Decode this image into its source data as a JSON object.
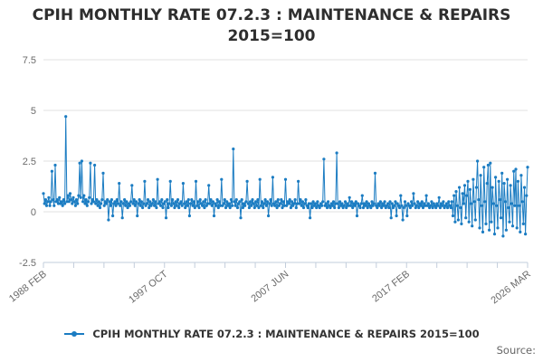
{
  "header": {
    "title": "CPIH MONTHLY RATE 07.2.3 : MAINTENANCE & REPAIRS 2015=100"
  },
  "legend": {
    "label": "CPIH MONTHLY RATE 07.2.3 : MAINTENANCE & REPAIRS 2015=100",
    "marker_color": "#1b7cc2"
  },
  "footer": {
    "source_label": "Source:"
  },
  "chart_data": {
    "type": "line",
    "title": "CPIH MONTHLY RATE 07.2.3 : MAINTENANCE & REPAIRS 2015=100",
    "xlabel": "",
    "ylabel": "",
    "x_start": "1988 FEB",
    "x_end": "2026 MAR",
    "frequency": "monthly",
    "x_tick_labels": [
      "1988 FEB",
      "1997 OCT",
      "2007 JUN",
      "2017 FEB",
      "2026 MAR"
    ],
    "x_total_ticks": 17,
    "y_ticks": [
      7.5,
      5,
      2.5,
      0,
      -2.5
    ],
    "ylim": [
      -2.5,
      7.5
    ],
    "grid": "horizontal",
    "legend_position": "bottom",
    "colors": {
      "line": "#1b7cc2",
      "grid": "#e1e1e1",
      "axis": "#c2cddb",
      "tick_label": "#6b6b6b"
    },
    "series": [
      {
        "name": "CPIH MONTHLY RATE 07.2.3 : MAINTENANCE & REPAIRS 2015=100",
        "values": [
          0.9,
          0.4,
          0.6,
          0.3,
          0.5,
          0.7,
          0.3,
          0.5,
          2.0,
          0.6,
          0.3,
          2.3,
          0.5,
          0.6,
          0.4,
          0.7,
          0.4,
          0.5,
          0.3,
          0.6,
          0.4,
          4.7,
          0.5,
          0.8,
          0.5,
          0.9,
          0.6,
          0.4,
          0.7,
          0.5,
          0.3,
          0.6,
          0.4,
          0.8,
          2.4,
          0.7,
          2.5,
          0.5,
          0.8,
          0.4,
          0.6,
          0.3,
          0.5,
          0.7,
          2.4,
          0.4,
          0.6,
          0.5,
          2.3,
          0.4,
          0.6,
          0.3,
          0.5,
          0.2,
          0.4,
          0.6,
          1.9,
          0.3,
          0.5,
          0.4,
          0.6,
          -0.4,
          0.5,
          0.3,
          0.6,
          -0.2,
          0.4,
          0.5,
          0.3,
          0.6,
          0.4,
          1.4,
          0.3,
          0.5,
          -0.3,
          0.4,
          0.6,
          0.3,
          0.5,
          0.2,
          0.4,
          0.3,
          0.5,
          1.3,
          0.4,
          0.6,
          0.3,
          0.5,
          -0.2,
          0.4,
          0.6,
          0.3,
          0.5,
          0.2,
          0.4,
          1.5,
          0.3,
          0.4,
          0.6,
          0.2,
          0.5,
          0.3,
          0.4,
          0.6,
          0.3,
          0.5,
          0.2,
          1.6,
          0.4,
          0.5,
          0.3,
          0.6,
          0.2,
          0.4,
          0.5,
          -0.3,
          0.6,
          0.2,
          0.4,
          1.5,
          0.3,
          0.6,
          0.4,
          0.2,
          0.5,
          0.3,
          0.6,
          0.2,
          0.4,
          0.5,
          0.3,
          1.4,
          0.4,
          0.2,
          0.5,
          0.3,
          0.6,
          -0.2,
          0.4,
          0.6,
          0.3,
          0.5,
          0.2,
          1.5,
          0.3,
          0.5,
          0.2,
          0.6,
          0.4,
          0.3,
          0.5,
          0.2,
          0.6,
          0.3,
          0.4,
          1.3,
          0.4,
          0.6,
          0.3,
          0.5,
          -0.2,
          0.4,
          0.3,
          0.6,
          0.2,
          0.5,
          0.3,
          1.6,
          0.3,
          0.4,
          0.6,
          0.2,
          0.5,
          0.3,
          0.4,
          0.2,
          0.6,
          0.3,
          3.1,
          0.5,
          0.3,
          0.6,
          0.2,
          0.4,
          0.5,
          -0.3,
          0.6,
          0.2,
          0.4,
          0.3,
          0.5,
          1.5,
          0.4,
          0.2,
          0.5,
          0.3,
          0.6,
          0.4,
          0.2,
          0.5,
          0.3,
          0.6,
          0.2,
          1.6,
          0.3,
          0.5,
          0.2,
          0.4,
          0.6,
          0.3,
          0.5,
          -0.2,
          0.4,
          0.6,
          0.3,
          1.7,
          0.4,
          0.3,
          0.5,
          0.2,
          0.6,
          0.3,
          0.4,
          0.6,
          0.2,
          0.5,
          0.3,
          1.6,
          0.3,
          0.5,
          0.4,
          0.6,
          0.2,
          0.5,
          0.3,
          0.4,
          0.6,
          0.2,
          0.4,
          1.5,
          0.4,
          0.6,
          0.3,
          0.5,
          0.2,
          0.4,
          0.6,
          0.3,
          0.2,
          0.4,
          -0.3,
          0.4,
          0.2,
          0.5,
          0.3,
          0.4,
          0.2,
          0.5,
          0.3,
          0.2,
          0.4,
          0.3,
          0.5,
          2.6,
          0.3,
          0.4,
          0.2,
          0.5,
          0.3,
          0.2,
          0.4,
          0.3,
          0.5,
          0.2,
          0.4,
          2.9,
          0.4,
          0.2,
          0.5,
          0.3,
          0.4,
          0.2,
          0.3,
          0.5,
          0.2,
          0.4,
          0.3,
          0.7,
          0.3,
          0.5,
          0.2,
          0.4,
          0.3,
          0.5,
          -0.2,
          0.4,
          0.3,
          0.2,
          0.4,
          0.8,
          0.2,
          0.4,
          0.3,
          0.5,
          0.2,
          0.4,
          0.3,
          0.2,
          0.5,
          0.3,
          0.4,
          1.9,
          0.3,
          0.2,
          0.4,
          0.3,
          0.5,
          0.2,
          0.4,
          0.3,
          0.5,
          0.2,
          0.3,
          0.4,
          0.2,
          0.5,
          -0.3,
          0.4,
          0.2,
          0.3,
          0.5,
          -0.2,
          0.4,
          0.3,
          0.2,
          0.8,
          0.3,
          -0.4,
          0.2,
          0.5,
          0.3,
          -0.2,
          0.4,
          0.3,
          0.2,
          0.5,
          0.3,
          0.9,
          0.4,
          0.2,
          0.3,
          0.5,
          0.2,
          0.4,
          0.3,
          0.5,
          0.2,
          0.4,
          0.3,
          0.8,
          0.3,
          0.4,
          0.2,
          0.3,
          0.5,
          0.2,
          0.4,
          0.3,
          0.2,
          0.4,
          0.3,
          0.7,
          0.2,
          0.4,
          0.3,
          0.5,
          0.2,
          0.3,
          0.4,
          0.2,
          0.5,
          0.3,
          0.2,
          0.5,
          -0.2,
          0.8,
          -0.5,
          1.0,
          0.3,
          -0.4,
          1.2,
          0.2,
          -0.6,
          0.9,
          0.4,
          1.3,
          -0.3,
          0.8,
          1.5,
          -0.5,
          1.1,
          0.4,
          -0.7,
          1.6,
          0.5,
          -0.4,
          1.2,
          2.5,
          0.6,
          -0.8,
          1.8,
          0.3,
          -1.0,
          2.2,
          0.5,
          -0.6,
          1.4,
          2.3,
          -0.9,
          2.4,
          -0.5,
          1.2,
          0.4,
          -1.1,
          1.7,
          0.3,
          -0.8,
          1.5,
          0.6,
          -0.3,
          1.9,
          -1.2,
          1.4,
          0.5,
          -0.9,
          1.6,
          0.2,
          -0.5,
          1.3,
          0.4,
          -0.7,
          2.0,
          0.3,
          2.1,
          -0.8,
          1.5,
          0.3,
          -1.0,
          1.8,
          0.5,
          -0.6,
          1.2,
          -1.1,
          0.8,
          2.2
        ]
      }
    ]
  }
}
